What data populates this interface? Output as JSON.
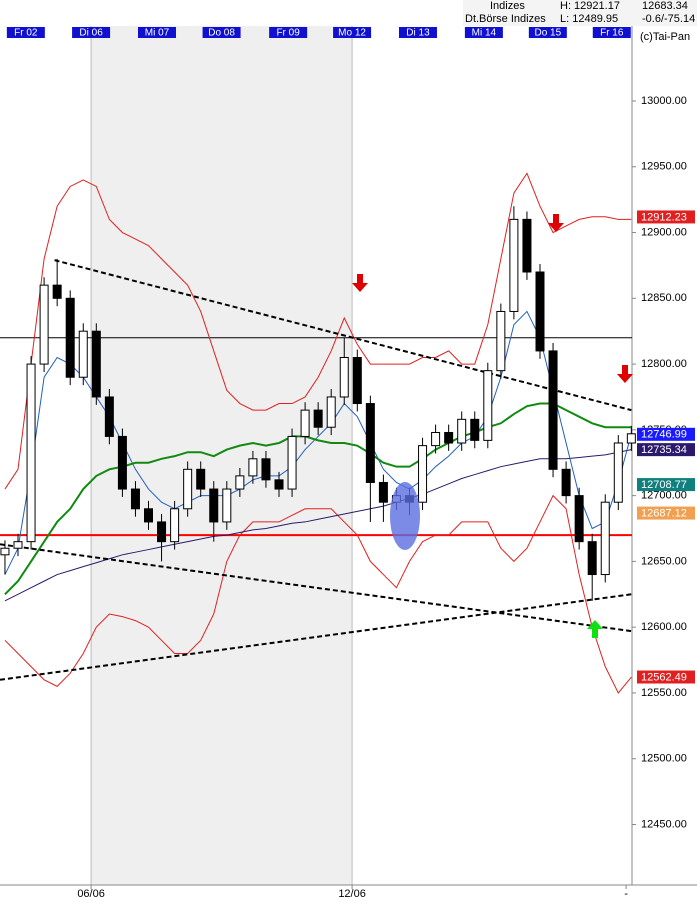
{
  "header": {
    "group": "Indizes",
    "index": "Dt.Börse Indizes",
    "high": "H: 12921.17",
    "low": "L: 12489.95",
    "last": "12683.34",
    "change": "-0.6/-75.14",
    "copyright": "(c)Tai-Pan"
  },
  "chart_data": {
    "type": "candlestick",
    "days": [
      {
        "label": "Fr 02",
        "x": 1.6
      },
      {
        "label": "Di 06",
        "x": 6.6
      },
      {
        "label": "Mi 07",
        "x": 11.65
      },
      {
        "label": "Do 08",
        "x": 16.6
      },
      {
        "label": "Fr 09",
        "x": 21.7
      },
      {
        "label": "Mo 12",
        "x": 26.6
      },
      {
        "label": "Di 13",
        "x": 31.65
      },
      {
        "label": "Mi 14",
        "x": 36.7
      },
      {
        "label": "Do 15",
        "x": 41.6
      },
      {
        "label": "Fr 16",
        "x": 46.5
      }
    ],
    "shade": [
      6.6,
      26.6
    ],
    "bottom_labels": [
      {
        "label": "06/06",
        "x": 6.6
      },
      {
        "label": "12/06",
        "x": 26.6
      },
      {
        "label": "-",
        "x": 47.6
      }
    ],
    "xlim": [
      -0.38,
      48.05
    ],
    "ylim": [
      12404,
      13057
    ],
    "yticks": [
      {
        "value": 12450,
        "label": "12450.00"
      },
      {
        "value": 12500,
        "label": "12500.00"
      },
      {
        "value": 12550,
        "label": "12550.00"
      },
      {
        "value": 12600,
        "label": "12600.00"
      },
      {
        "value": 12650,
        "label": "12650.00"
      },
      {
        "value": 12700,
        "label": "12700.00"
      },
      {
        "value": 12750,
        "label": "12750.00"
      },
      {
        "value": 12800,
        "label": "12800.00"
      },
      {
        "value": 12850,
        "label": "12850.00"
      },
      {
        "value": 12900,
        "label": "12900.00"
      },
      {
        "value": 12950,
        "label": "12950.00"
      },
      {
        "value": 13000,
        "label": "13000.00"
      }
    ],
    "open": [
      12655,
      12660,
      12665,
      12800,
      12860,
      12850,
      12790,
      12825,
      12775,
      12745,
      12705,
      12690,
      12680,
      12665,
      12690,
      12720,
      12705,
      12680,
      12705,
      12715,
      12728,
      12712,
      12705,
      12745,
      12765,
      12752,
      12775,
      12805,
      12770,
      12710,
      12695,
      12700,
      12695,
      12738,
      12748,
      12740,
      12758,
      12742,
      12795,
      12840,
      12910,
      12870,
      12810,
      12720,
      12700,
      12665,
      12640,
      12695,
      12740
    ],
    "high": [
      12666,
      12671,
      12806,
      12866,
      12880,
      12856,
      12831,
      12831,
      12781,
      12751,
      12711,
      12696,
      12686,
      12696,
      12726,
      12726,
      12711,
      12711,
      12721,
      12734,
      12734,
      12718,
      12751,
      12771,
      12771,
      12781,
      12820,
      12811,
      12776,
      12716,
      12706,
      12706,
      12744,
      12754,
      12754,
      12764,
      12764,
      12801,
      12846,
      12920,
      12916,
      12876,
      12816,
      12726,
      12706,
      12671,
      12701,
      12746,
      12753
    ],
    "low": [
      12640,
      12654,
      12659,
      12794,
      12844,
      12784,
      12784,
      12769,
      12739,
      12699,
      12684,
      12674,
      12650,
      12659,
      12684,
      12699,
      12665,
      12674,
      12699,
      12709,
      12706,
      12699,
      12699,
      12739,
      12746,
      12746,
      12769,
      12764,
      12680,
      12680,
      12689,
      12685,
      12689,
      12732,
      12734,
      12734,
      12736,
      12736,
      12789,
      12834,
      12864,
      12804,
      12714,
      12694,
      12659,
      12620,
      12634,
      12689,
      12734
    ],
    "close": [
      12660,
      12665,
      12800,
      12860,
      12850,
      12790,
      12825,
      12775,
      12745,
      12705,
      12690,
      12680,
      12665,
      12690,
      12720,
      12705,
      12680,
      12705,
      12715,
      12728,
      12712,
      12705,
      12745,
      12765,
      12752,
      12775,
      12805,
      12770,
      12710,
      12695,
      12700,
      12695,
      12738,
      12748,
      12740,
      12758,
      12742,
      12795,
      12840,
      12910,
      12870,
      12810,
      12720,
      12700,
      12665,
      12640,
      12695,
      12740,
      12747
    ],
    "series": [
      {
        "color": "#e02020",
        "values": [
          12705,
          12720,
          12800,
          12880,
          12920,
          12935,
          12940,
          12935,
          12910,
          12900,
          12895,
          12890,
          12880,
          12870,
          12860,
          12840,
          12810,
          12780,
          12770,
          12765,
          12765,
          12770,
          12770,
          12775,
          12790,
          12810,
          12835,
          12815,
          12800,
          12800,
          12800,
          12800,
          12805,
          12805,
          12810,
          12800,
          12800,
          12830,
          12880,
          12930,
          12945,
          12920,
          12900,
          12905,
          12910,
          12912,
          12912,
          12910,
          12910
        ]
      },
      {
        "color": "#e02020",
        "values": [
          12590,
          12580,
          12570,
          12560,
          12555,
          12565,
          12580,
          12600,
          12610,
          12608,
          12605,
          12600,
          12590,
          12580,
          12580,
          12590,
          12610,
          12650,
          12670,
          12680,
          12680,
          12680,
          12685,
          12690,
          12690,
          12690,
          12680,
          12670,
          12650,
          12640,
          12630,
          12650,
          12665,
          12670,
          12670,
          12680,
          12680,
          12680,
          12660,
          12650,
          12660,
          12680,
          12700,
          12690,
          12640,
          12600,
          12570,
          12550,
          12562
        ]
      },
      {
        "color": "#2b1a6b",
        "values": [
          12620,
          12625,
          12630,
          12635,
          12640,
          12643,
          12646,
          12649,
          12652,
          12655,
          12657,
          12659,
          12661,
          12663,
          12665,
          12667,
          12669,
          12670,
          12672,
          12674,
          12675,
          12677,
          12679,
          12680,
          12682,
          12684,
          12686,
          12688,
          12690,
          12692,
          12695,
          12698,
          12701,
          12705,
          12709,
          12713,
          12716,
          12719,
          12722,
          12724,
          12726,
          12728,
          12728,
          12728,
          12729,
          12730,
          12731,
          12733,
          12735
        ]
      },
      {
        "color": "#2060c0",
        "values": [
          12640,
          12660,
          12720,
          12790,
          12805,
          12800,
          12790,
          12775,
          12760,
          12740,
          12720,
          12705,
          12695,
          12690,
          12695,
          12700,
          12700,
          12700,
          12705,
          12712,
          12715,
          12715,
          12722,
          12735,
          12745,
          12755,
          12770,
          12760,
          12740,
          12720,
          12710,
          12705,
          12712,
          12722,
          12730,
          12740,
          12745,
          12760,
          12790,
          12830,
          12840,
          12820,
          12780,
          12740,
          12700,
          12675,
          12680,
          12710,
          12747
        ]
      },
      {
        "color": "#108a10",
        "values": [
          12625,
          12635,
          12650,
          12665,
          12680,
          12690,
          12705,
          12715,
          12720,
          12722,
          12725,
          12725,
          12728,
          12730,
          12733,
          12733,
          12730,
          12735,
          12738,
          12740,
          12738,
          12740,
          12745,
          12745,
          12742,
          12740,
          12740,
          12738,
          12732,
          12725,
          12722,
          12722,
          12728,
          12735,
          12740,
          12745,
          12748,
          12752,
          12755,
          12762,
          12768,
          12770,
          12770,
          12765,
          12760,
          12755,
          12752,
          12752,
          12752
        ]
      }
    ],
    "levels": [
      {
        "value": 12820,
        "color": "#000000"
      },
      {
        "value": 12670,
        "color": "#ff0000"
      }
    ],
    "trendlines": [
      {
        "points": [
          [
            3.8,
            12879
          ],
          [
            48,
            12765
          ]
        ]
      },
      {
        "points": [
          [
            -0.38,
            12663
          ],
          [
            48,
            12597
          ]
        ]
      },
      {
        "points": [
          [
            -0.38,
            12560
          ],
          [
            48,
            12625
          ]
        ]
      }
    ],
    "price_labels": [
      {
        "value": 12912.23,
        "label": "12912.23",
        "color": "#e02020"
      },
      {
        "value": 12746.99,
        "label": "12746.99",
        "color": "#1a1aff"
      },
      {
        "value": 12735.34,
        "label": "12735.34",
        "color": "#2b1a6b"
      },
      {
        "value": 12708.77,
        "label": "12708.77",
        "color": "#10807f"
      },
      {
        "value": 12687.12,
        "label": "12687.12",
        "color": "#f0a050"
      },
      {
        "value": 12562.49,
        "label": "12562.49",
        "color": "#e02020"
      }
    ]
  }
}
